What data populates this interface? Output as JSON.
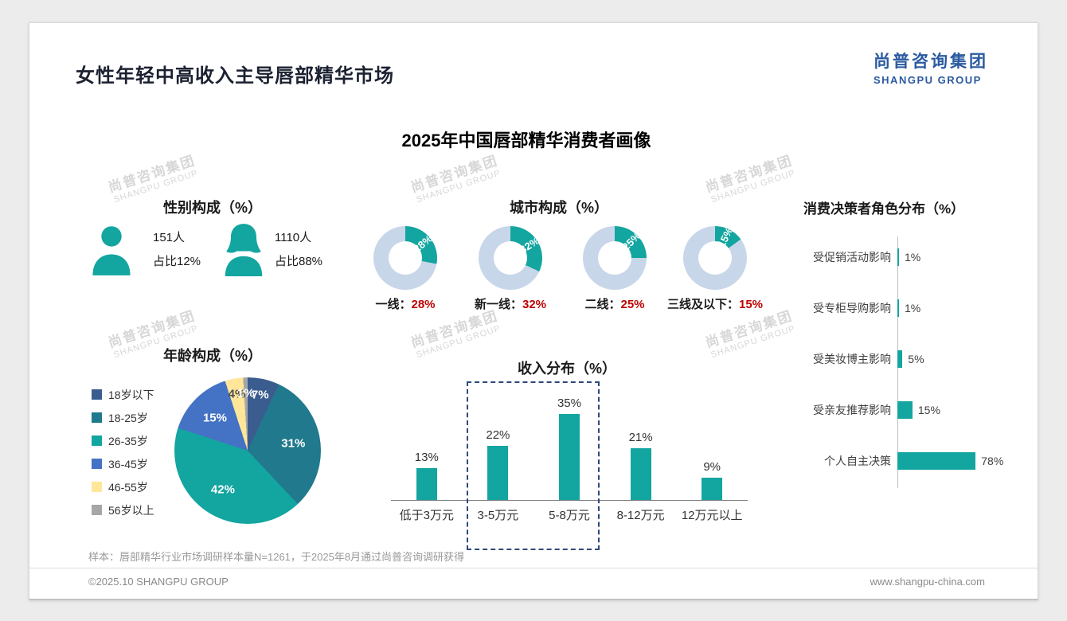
{
  "page": {
    "title": "女性年轻中高收入主导唇部精华市场",
    "main_chart_title": "2025年中国唇部精华消费者画像",
    "footnote": "样本：唇部精华行业市场调研样本量N=1261，于2025年8月通过尚普咨询调研获得",
    "footer_left": "©2025.10 SHANGPU GROUP",
    "footer_right": "www.shangpu-china.com"
  },
  "logo": {
    "cn": "尚普咨询集团",
    "en": "SHANGPU GROUP"
  },
  "watermark": {
    "cn": "尚普咨询集团",
    "en": "SHANGPU GROUP"
  },
  "colors": {
    "teal": "#13A5A0",
    "donut_track": "#C8D6E9",
    "highlight_red": "#C00000",
    "brand_navy": "#2B5AA0",
    "dashed_box_navy": "#2D4A7A"
  },
  "chart_data": [
    {
      "type": "pictogram",
      "title": "性别构成（%）",
      "items": [
        {
          "label": "男性",
          "count": "151人",
          "share": "占比12%"
        },
        {
          "label": "女性",
          "count": "1110人",
          "share": "占比88%"
        }
      ]
    },
    {
      "type": "donut",
      "title": "城市构成（%）",
      "items": [
        {
          "label": "一线：",
          "value": 28,
          "value_text": "28%"
        },
        {
          "label": "新一线：",
          "value": 32,
          "value_text": "32%"
        },
        {
          "label": "二线：",
          "value": 25,
          "value_text": "25%"
        },
        {
          "label": "三线及以下：",
          "value": 15,
          "value_text": "15%"
        }
      ]
    },
    {
      "type": "pie",
      "title": "年龄构成（%）",
      "categories": [
        "18岁以下",
        "18-25岁",
        "26-35岁",
        "36-45岁",
        "46-55岁",
        "56岁以上"
      ],
      "values": [
        7,
        31,
        42,
        15,
        4,
        1
      ],
      "colors": [
        "#3B5C8F",
        "#20798C",
        "#13A5A0",
        "#4472C4",
        "#FFE699",
        "#A6A6A6"
      ]
    },
    {
      "type": "bar",
      "title": "收入分布（%）",
      "categories": [
        "低于3万元",
        "3-5万元",
        "5-8万元",
        "8-12万元",
        "12万元以上"
      ],
      "values": [
        13,
        22,
        35,
        21,
        9
      ],
      "value_labels": [
        "13%",
        "22%",
        "35%",
        "21%",
        "9%"
      ],
      "highlighted_categories": [
        "3-5万元",
        "5-8万元"
      ]
    },
    {
      "type": "hbar",
      "title": "消费决策者角色分布（%）",
      "categories": [
        "受促销活动影响",
        "受专柜导购影响",
        "受美妆博主影响",
        "受亲友推荐影响",
        "个人自主决策"
      ],
      "values": [
        1,
        1,
        5,
        15,
        78
      ],
      "value_labels": [
        "1%",
        "1%",
        "5%",
        "15%",
        "78%"
      ]
    }
  ]
}
